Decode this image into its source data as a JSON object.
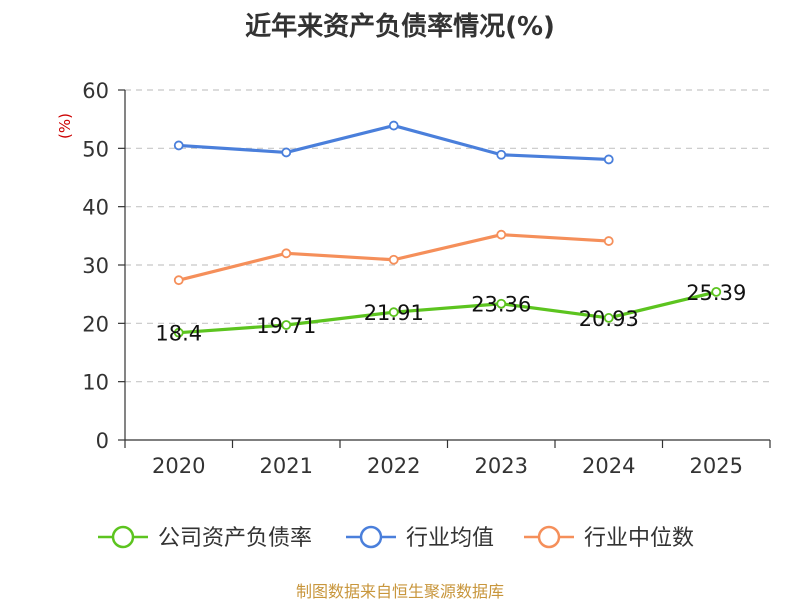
{
  "title": "近年来资产负债率情况(%)",
  "footer": "制图数据来自恒生聚源数据库",
  "colors": {
    "company": "#5cc41f",
    "industry_avg": "#4a7fdb",
    "industry_median": "#f58f5a",
    "ylabel": "#cc0000",
    "grid": "#c8c8c8",
    "footer": "#c8963c"
  },
  "chart_data": {
    "type": "line",
    "title": "近年来资产负债率情况(%)",
    "ylabel": "(%)",
    "xlabel": "",
    "categories": [
      "2020",
      "2021",
      "2022",
      "2023",
      "2024",
      "2025"
    ],
    "ylim": [
      0,
      60
    ],
    "yticks": [
      0,
      10,
      20,
      30,
      40,
      50,
      60
    ],
    "grid": "horizontal dashed",
    "legend_position": "bottom",
    "series": [
      {
        "name": "公司资产负债率",
        "values": [
          18.4,
          19.71,
          21.91,
          23.36,
          20.93,
          25.39
        ],
        "labels": [
          "18.4",
          "19.71",
          "21.91",
          "23.36",
          "20.93",
          "25.39"
        ]
      },
      {
        "name": "行业均值",
        "values": [
          50.5,
          49.3,
          53.9,
          48.9,
          48.1,
          null
        ]
      },
      {
        "name": "行业中位数",
        "values": [
          27.4,
          32.0,
          30.9,
          35.2,
          34.1,
          null
        ]
      }
    ]
  }
}
